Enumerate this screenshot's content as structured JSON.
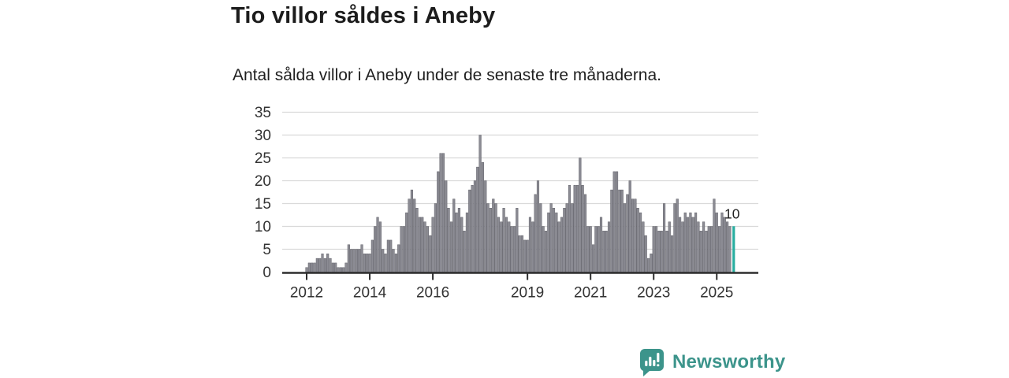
{
  "header": {
    "title": "Tio villor såldes i Aneby",
    "subtitle": "Antal sålda villor i Aneby under de senaste tre månaderna."
  },
  "chart_data": {
    "type": "bar",
    "title": "Tio villor såldes i Aneby",
    "subtitle": "Antal sålda villor i Aneby under de senaste tre månaderna.",
    "x_start": "2012-01",
    "x_interval": "month",
    "values": [
      1,
      2,
      2,
      2,
      3,
      3,
      4,
      3,
      4,
      3,
      2,
      2,
      1,
      1,
      1,
      2,
      6,
      5,
      5,
      5,
      5,
      6,
      4,
      4,
      4,
      7,
      10,
      12,
      11,
      5,
      4,
      7,
      7,
      5,
      4,
      6,
      10,
      10,
      13,
      16,
      18,
      16,
      14,
      12,
      12,
      11,
      10,
      8,
      12,
      15,
      22,
      26,
      26,
      20,
      14,
      11,
      16,
      13,
      14,
      12,
      9,
      13,
      18,
      19,
      20,
      23,
      30,
      24,
      20,
      15,
      14,
      16,
      15,
      12,
      11,
      14,
      12,
      11,
      10,
      10,
      14,
      8,
      8,
      7,
      7,
      12,
      11,
      17,
      20,
      15,
      10,
      9,
      13,
      15,
      14,
      13,
      11,
      12,
      14,
      15,
      19,
      15,
      19,
      19,
      25,
      19,
      17,
      10,
      10,
      6,
      10,
      10,
      12,
      9,
      9,
      11,
      18,
      22,
      22,
      18,
      18,
      15,
      17,
      20,
      16,
      16,
      14,
      13,
      11,
      8,
      3,
      4,
      10,
      10,
      9,
      9,
      15,
      9,
      11,
      8,
      15,
      16,
      12,
      11,
      13,
      12,
      13,
      12,
      13,
      11,
      9,
      11,
      9,
      10,
      10,
      16,
      13,
      10,
      13,
      12,
      11,
      10,
      10
    ],
    "highlight_last": true,
    "annotation": {
      "value_label": "10"
    },
    "ylim": [
      0,
      35
    ],
    "y_ticks": [
      0,
      5,
      10,
      15,
      20,
      25,
      30,
      35
    ],
    "x_tick_years": [
      2012,
      2014,
      2016,
      2019,
      2021,
      2023,
      2025
    ],
    "grid": true,
    "legend": "none",
    "colors": {
      "bar_fill": "#8b8b93",
      "bar_stroke": "#5a5a62",
      "highlight": "#28ada0",
      "grid_line": "#d9d9d9",
      "axis_line": "#2e2e2e",
      "tick_text": "#333333",
      "annotation_text": "#222222"
    }
  },
  "footer": {
    "brand": "Newsworthy",
    "brand_color": "#3c948b",
    "icon": "bar-chart-speech-bubble"
  }
}
